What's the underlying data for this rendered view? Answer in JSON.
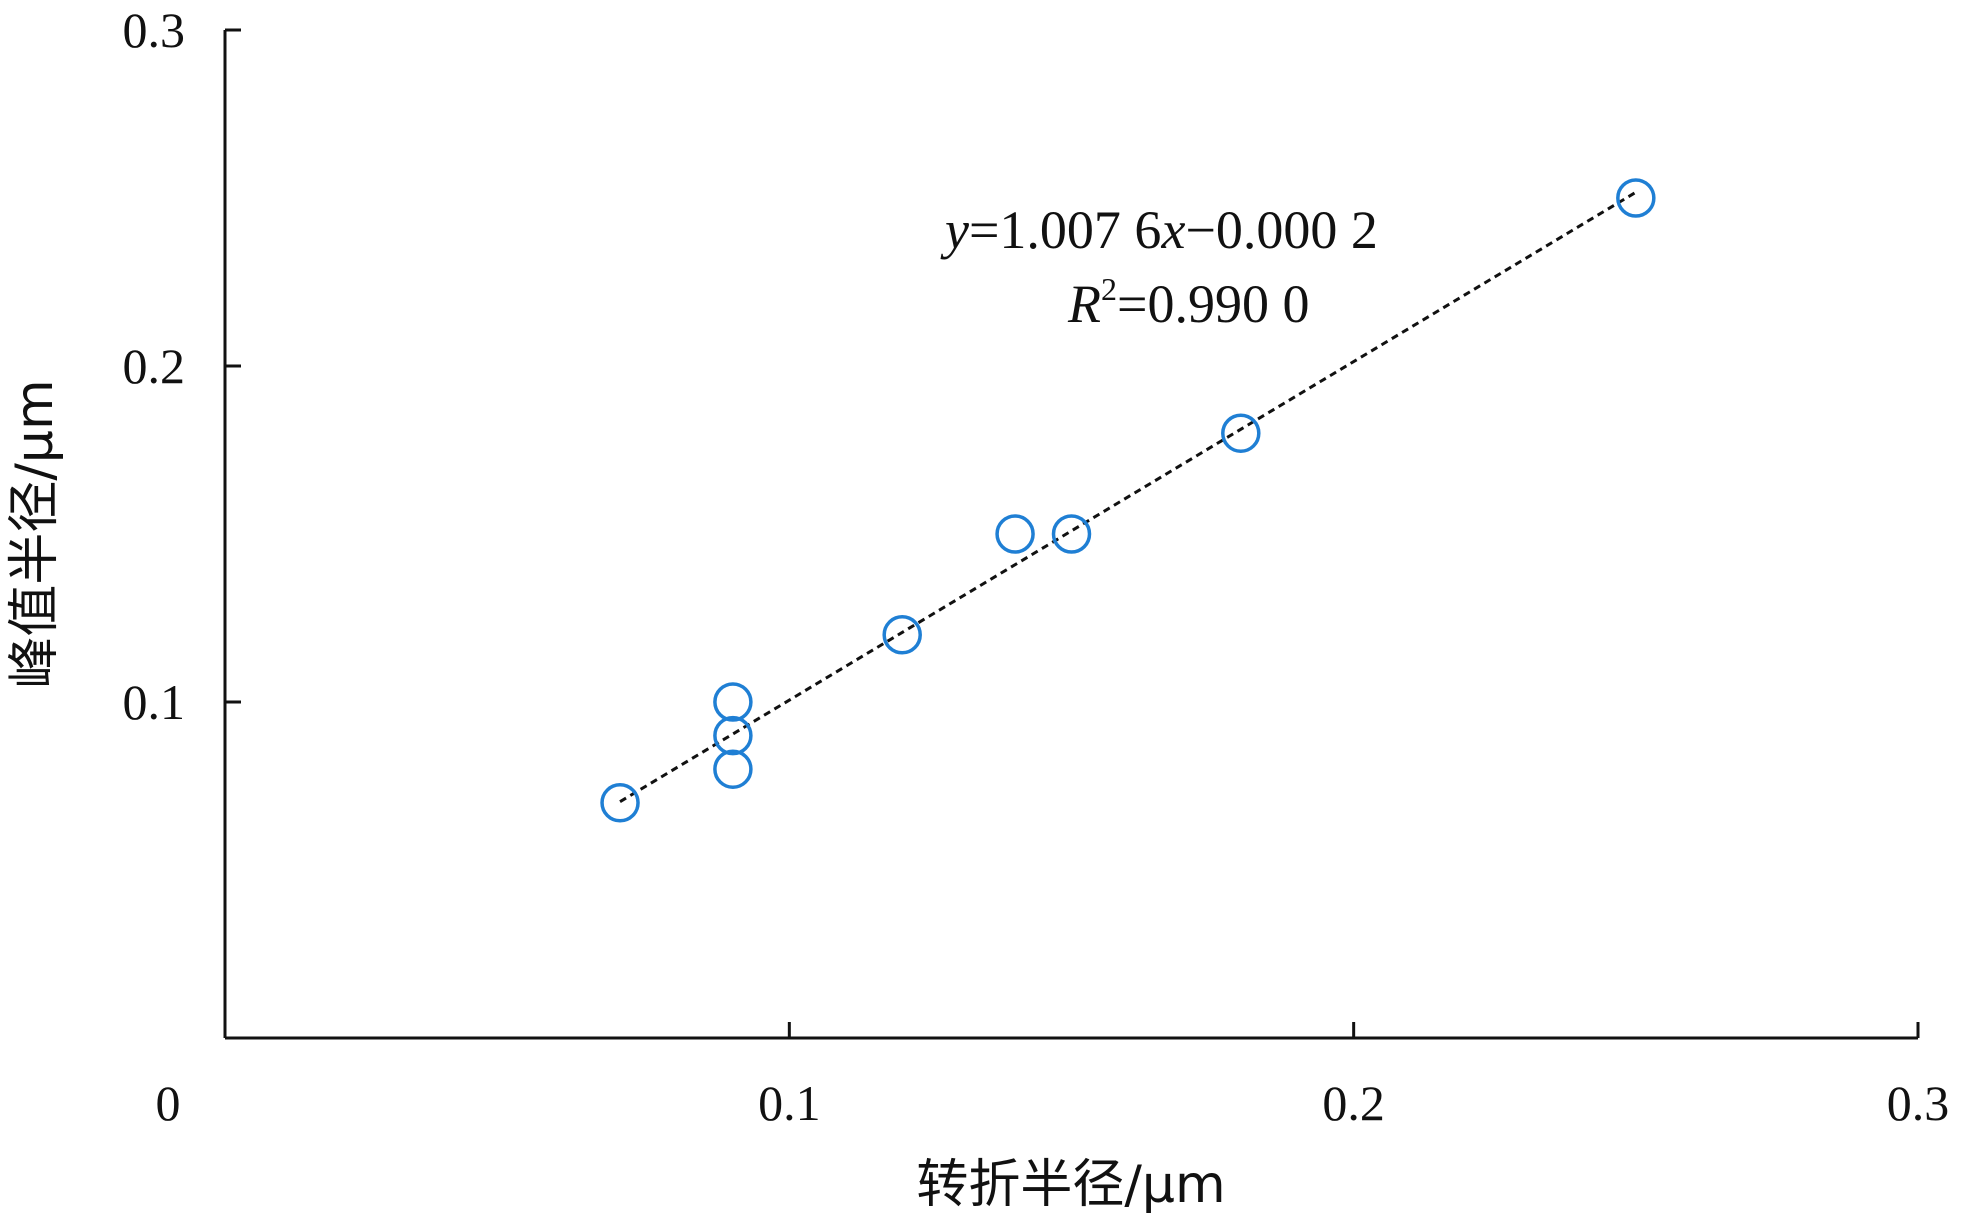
{
  "chart_data": {
    "type": "scatter",
    "xlabel": "转折半径/μm",
    "ylabel": "峰值半径/μm",
    "xlim": [
      0,
      0.3
    ],
    "ylim": [
      0,
      0.3
    ],
    "x_ticks": [
      0.1,
      0.2,
      0.3
    ],
    "x_tick_labels": [
      "0.1",
      "0.2",
      "0.3"
    ],
    "y_ticks": [
      0.1,
      0.2,
      0.3
    ],
    "y_tick_labels": [
      "0.1",
      "0.2",
      "0.3"
    ],
    "origin_label": "0",
    "grid": false,
    "marker_color": "#1f7fd4",
    "trendline_color": "#111111",
    "points": [
      {
        "x": 0.07,
        "y": 0.07
      },
      {
        "x": 0.09,
        "y": 0.1
      },
      {
        "x": 0.09,
        "y": 0.09
      },
      {
        "x": 0.09,
        "y": 0.08
      },
      {
        "x": 0.12,
        "y": 0.12
      },
      {
        "x": 0.14,
        "y": 0.15
      },
      {
        "x": 0.15,
        "y": 0.15
      },
      {
        "x": 0.18,
        "y": 0.18
      },
      {
        "x": 0.25,
        "y": 0.25
      }
    ],
    "trendline": {
      "slope": 1.0076,
      "intercept": -0.0002,
      "x_range": [
        0.07,
        0.25
      ],
      "equation": {
        "y_symbol": "y",
        "eq_part1": "=1.007 6",
        "x_symbol": "x",
        "eq_part2": "−0.000 2",
        "r_symbol": "R",
        "r_exponent": "2",
        "r_value": "=0.990 0"
      }
    }
  }
}
